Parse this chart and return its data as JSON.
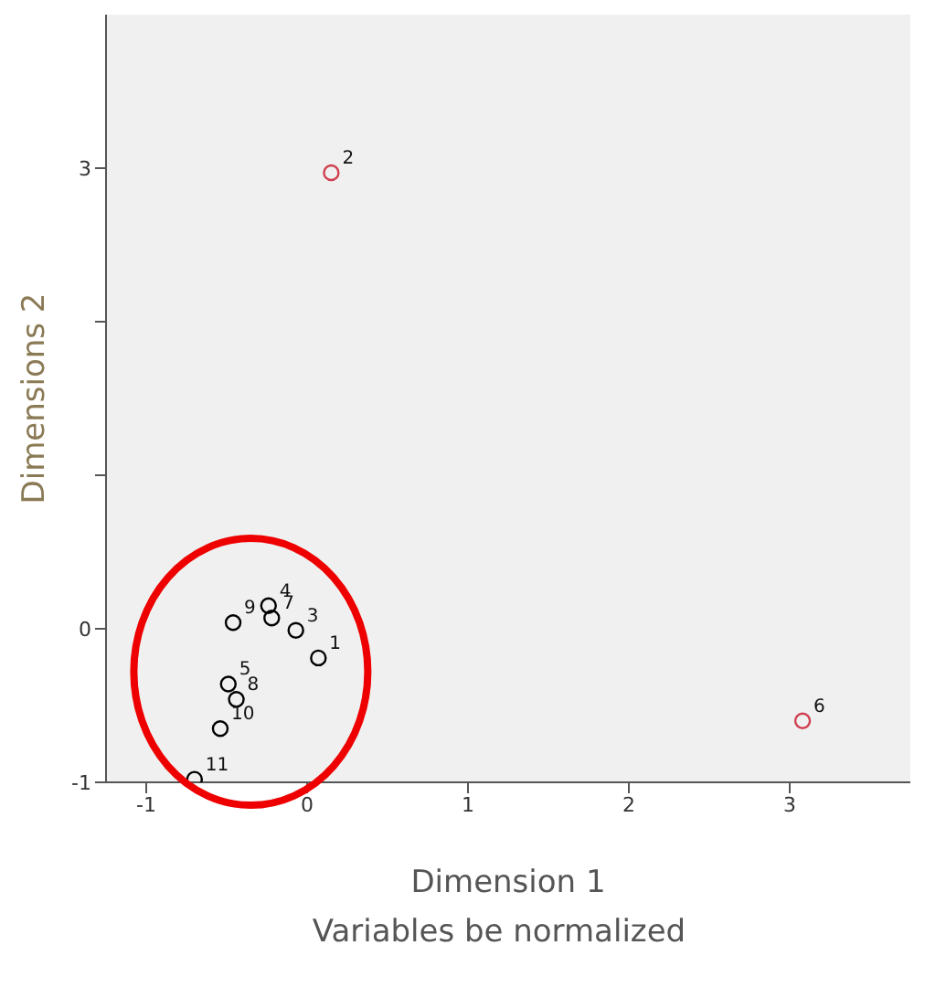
{
  "chart_data": {
    "type": "scatter",
    "xlabel": "Dimension 1",
    "ylabel": "Dimensions 2",
    "marker": "circle",
    "annotations": [
      "Variables be normalized",
      {
        "text": "9",
        "x": -0.46,
        "y": 0.04
      },
      {
        "text": "4",
        "x": -0.24,
        "y": 0.15
      },
      {
        "text": "7",
        "x": -0.22,
        "y": 0.07
      },
      {
        "text": "3",
        "x": -0.07,
        "y": -0.01
      },
      {
        "text": "1",
        "x": 0.07,
        "y": -0.19
      },
      {
        "text": "5",
        "x": -0.49,
        "y": -0.36
      },
      {
        "text": "8",
        "x": -0.44,
        "y": -0.46
      },
      {
        "text": "10",
        "x": -0.54,
        "y": -0.65
      },
      {
        "text": "11",
        "x": -0.7,
        "y": -0.98
      },
      {
        "text": "2",
        "x": 0.15,
        "y": 2.97
      },
      {
        "text": "6",
        "x": 3.08,
        "y": -0.6
      }
    ],
    "xlim": [
      -1.25,
      3.75
    ],
    "xticks": [
      -1,
      0,
      1,
      2,
      3
    ],
    "ylim": [
      -1,
      4
    ],
    "yticks": [
      -1,
      0,
      {
        "value": 1,
        "label": null
      },
      {
        "value": 2,
        "label": null
      },
      3
    ],
    "series": [
      {
        "color": "#000000",
        "x": [
          -0.46,
          -0.24,
          -0.22,
          -0.07,
          0.07,
          -0.49,
          -0.44,
          -0.54,
          -0.7
        ],
        "values": [
          0.04,
          0.15,
          0.07,
          -0.01,
          -0.19,
          -0.36,
          -0.46,
          -0.65,
          -0.98
        ]
      },
      {
        "color": "#d04050",
        "x": [
          0.15,
          3.08
        ],
        "values": [
          2.97,
          -0.6
        ]
      }
    ]
  }
}
